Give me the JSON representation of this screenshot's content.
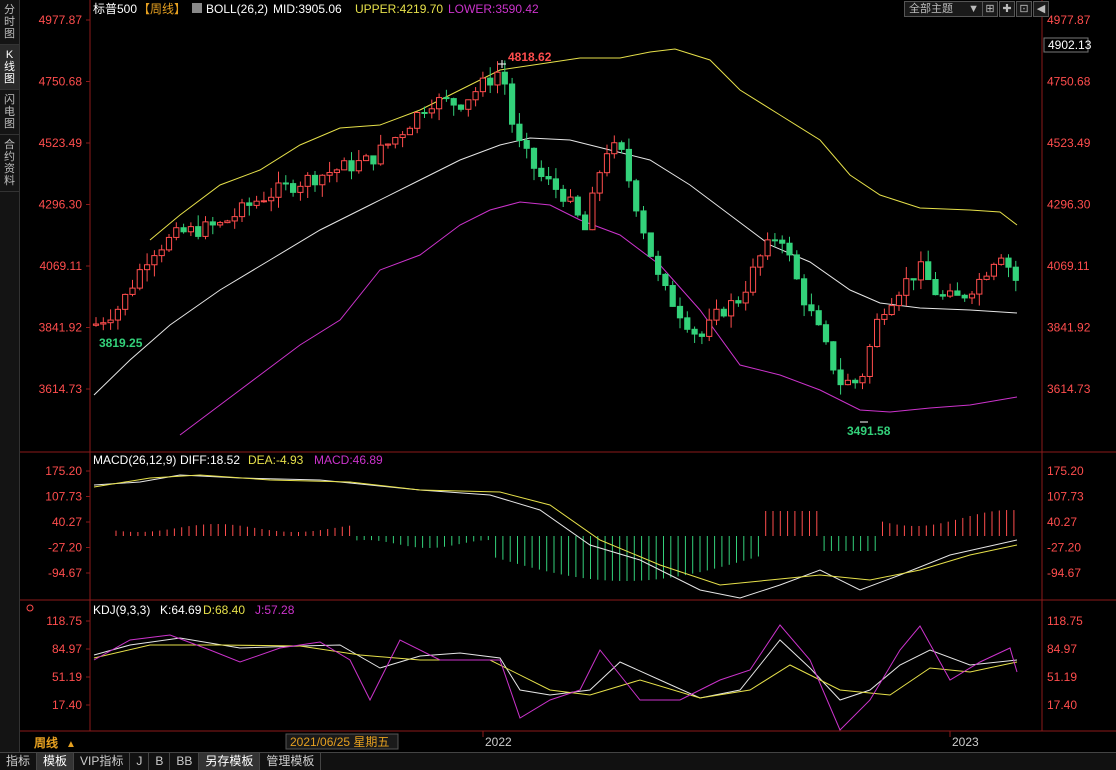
{
  "sidebar": {
    "items": [
      {
        "label": "分时图",
        "chars": [
          "分",
          "时",
          "图"
        ]
      },
      {
        "label": "K线图",
        "chars": [
          "K",
          "线",
          "图"
        ]
      },
      {
        "label": "闪电图",
        "chars": [
          "闪",
          "电",
          "图"
        ]
      },
      {
        "label": "合约资料",
        "chars": [
          "合",
          "约",
          "资",
          "料"
        ]
      }
    ]
  },
  "main_panel": {
    "symbol": "标普500",
    "period": "【周线】",
    "indicator": "BOLL(26,2)",
    "mid_label": "MID:3905.06",
    "upper_label": "UPPER:4219.70",
    "lower_label": "LOWER:3590.42",
    "y_ticks": [
      "4977.87",
      "4750.68",
      "4523.49",
      "4296.30",
      "4069.11",
      "3841.92",
      "3614.73"
    ],
    "current_price": "4902.13",
    "max_label": "4818.62",
    "min_label_left": "3819.25",
    "min_label": "3491.58"
  },
  "macd_panel": {
    "title": "MACD(26,12,9)",
    "diff": "DIFF:18.52",
    "dea": "DEA:-4.93",
    "macd": "MACD:46.89",
    "y_ticks": [
      "175.20",
      "107.73",
      "40.27",
      "-27.20",
      "-94.67"
    ]
  },
  "kdj_panel": {
    "title": "KDJ(9,3,3)",
    "k": "K:64.69",
    "d": "D:68.40",
    "j": "J:57.28",
    "y_ticks": [
      "118.75",
      "84.97",
      "51.19",
      "17.40"
    ]
  },
  "x_axis": {
    "period_label": "周线",
    "cursor_date": "2021/06/25 星期五",
    "labels": [
      "2022",
      "2023"
    ]
  },
  "toolbar": {
    "theme": "全部主题",
    "theme_arrow": "▼",
    "btn_zoom": "⊞",
    "btn_cross": "✚",
    "btn_frame": "⊡",
    "btn_left": "◀"
  },
  "bottom_tabs": [
    {
      "label": "指标",
      "active": false
    },
    {
      "label": "模板",
      "active": true
    },
    {
      "label": "VIP指标",
      "active": false
    },
    {
      "label": "J",
      "active": false
    },
    {
      "label": "B",
      "active": false
    },
    {
      "label": "BB",
      "active": false
    },
    {
      "label": "另存模板",
      "active": true
    },
    {
      "label": "管理模板",
      "active": false
    }
  ],
  "colors": {
    "up": "#ff4d4d",
    "down": "#33d17a",
    "mid": "#e6e6e6",
    "upper": "#e6e04a",
    "lower": "#cc33cc",
    "tick_red": "#ff4d4d",
    "label_yellow": "#e6e04a"
  }
}
